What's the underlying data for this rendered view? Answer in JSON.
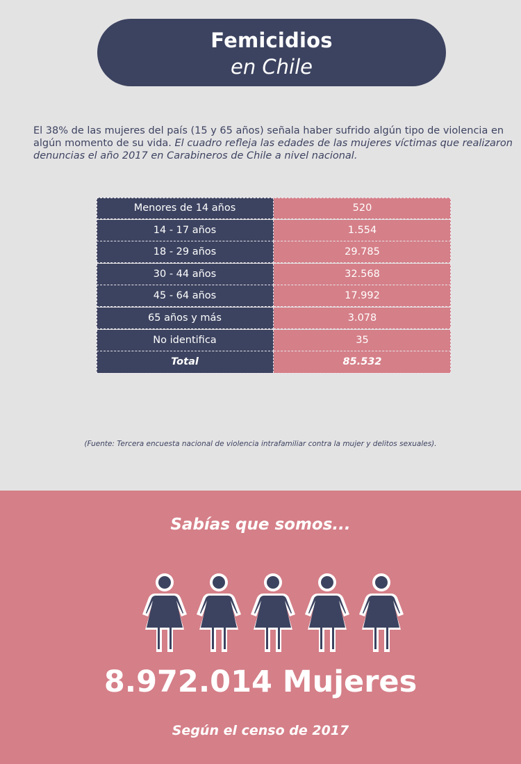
{
  "header": {
    "title_line1": "Femicidios",
    "title_line2": "en Chile"
  },
  "intro": {
    "plain": "El 38% de las mujeres del país (15 y 65 años) señala haber sufrido algún tipo de violencia en algún momento de su vida.",
    "italic": "El cuadro refleja las edades de las mujeres víctimas que realizaron denuncias el año 2017 en Carabineros de Chile a nivel nacional."
  },
  "table": {
    "rows": [
      {
        "age": "Menores de 14 años",
        "value": "520"
      },
      {
        "age": "14 - 17 años",
        "value": "1.554"
      },
      {
        "age": "18 - 29 años",
        "value": "29.785"
      },
      {
        "age": "30 - 44 años",
        "value": "32.568"
      },
      {
        "age": "45 - 64 años",
        "value": "17.992"
      },
      {
        "age": "65 años y más",
        "value": "3.078"
      },
      {
        "age": "No identifica",
        "value": "35"
      },
      {
        "age": "Total",
        "value": "85.532"
      }
    ]
  },
  "source": "(Fuente: Tercera encuesta nacional de violencia intrafamiliar contra la mujer y delitos sexuales).",
  "bottom": {
    "question": "Sabías que somos...",
    "figure_count": 5,
    "figure_icon": "woman-icon",
    "big_number": "8.972.014 Mujeres",
    "census": "Según el censo de 2017"
  },
  "colors": {
    "navy": "#3c4360",
    "pink": "#d57f88",
    "background": "#e4e3e4"
  }
}
